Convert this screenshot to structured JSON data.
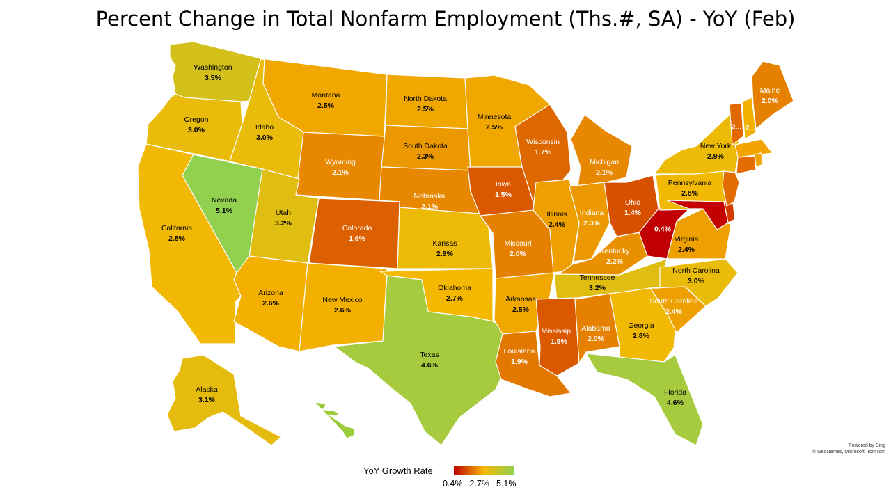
{
  "title": "Percent Change in Total Nonfarm Employment (Ths.#, SA) - YoY (Feb)",
  "legend": {
    "title": "YoY Growth Rate",
    "min_label": "0.4%",
    "mid_label": "2.7%",
    "max_label": "5.1%",
    "min": 0.4,
    "mid": 2.7,
    "max": 5.1,
    "colors": {
      "min": "#c00000",
      "mid": "#f5b800",
      "max": "#92d050"
    }
  },
  "credit": {
    "line1": "Powered by Bing",
    "line2": "© GeoNames, Microsoft, TomTom"
  },
  "states": [
    {
      "id": "WA",
      "name": "Washington",
      "value": 3.5,
      "label": "3.5%"
    },
    {
      "id": "OR",
      "name": "Oregon",
      "value": 3.0,
      "label": "3.0%"
    },
    {
      "id": "CA",
      "name": "California",
      "value": 2.8,
      "label": "2.8%"
    },
    {
      "id": "NV",
      "name": "Nevada",
      "value": 5.1,
      "label": "5.1%"
    },
    {
      "id": "ID",
      "name": "Idaho",
      "value": 3.0,
      "label": "3.0%"
    },
    {
      "id": "MT",
      "name": "Montana",
      "value": 2.5,
      "label": "2.5%"
    },
    {
      "id": "WY",
      "name": "Wyoming",
      "value": 2.1,
      "label": "2.1%"
    },
    {
      "id": "UT",
      "name": "Utah",
      "value": 3.2,
      "label": "3.2%"
    },
    {
      "id": "AZ",
      "name": "Arizona",
      "value": 2.6,
      "label": "2.6%"
    },
    {
      "id": "CO",
      "name": "Colorado",
      "value": 1.6,
      "label": "1.6%"
    },
    {
      "id": "NM",
      "name": "New Mexico",
      "value": 2.6,
      "label": "2.6%"
    },
    {
      "id": "ND",
      "name": "North Dakota",
      "value": 2.5,
      "label": "2.5%"
    },
    {
      "id": "SD",
      "name": "South Dakota",
      "value": 2.3,
      "label": "2.3%"
    },
    {
      "id": "NE",
      "name": "Nebraska",
      "value": 2.1,
      "label": "2.1%"
    },
    {
      "id": "KS",
      "name": "Kansas",
      "value": 2.9,
      "label": "2.9%"
    },
    {
      "id": "OK",
      "name": "Oklahoma",
      "value": 2.7,
      "label": "2.7%"
    },
    {
      "id": "TX",
      "name": "Texas",
      "value": 4.6,
      "label": "4.6%"
    },
    {
      "id": "MN",
      "name": "Minnesota",
      "value": 2.5,
      "label": "2.5%"
    },
    {
      "id": "IA",
      "name": "Iowa",
      "value": 1.5,
      "label": "1.5%"
    },
    {
      "id": "MO",
      "name": "Missouri",
      "value": 2.0,
      "label": "2.0%"
    },
    {
      "id": "AR",
      "name": "Arkansas",
      "value": 2.5,
      "label": "2.5%"
    },
    {
      "id": "LA",
      "name": "Louisiana",
      "value": 1.9,
      "label": "1.9%"
    },
    {
      "id": "WI",
      "name": "Wisconsin",
      "value": 1.7,
      "label": "1.7%"
    },
    {
      "id": "IL",
      "name": "Illinois",
      "value": 2.4,
      "label": "2.4%"
    },
    {
      "id": "MI",
      "name": "Michigan",
      "value": 2.1,
      "label": "2.1%"
    },
    {
      "id": "IN",
      "name": "Indiana",
      "value": 2.3,
      "label": "2.3%"
    },
    {
      "id": "OH",
      "name": "Ohio",
      "value": 1.4,
      "label": "1.4%"
    },
    {
      "id": "KY",
      "name": "Kentucky",
      "value": 2.2,
      "label": "2.2%"
    },
    {
      "id": "TN",
      "name": "Tennessee",
      "value": 3.2,
      "label": "3.2%"
    },
    {
      "id": "MS",
      "name": "Mississip...",
      "value": 1.5,
      "label": "1.5%"
    },
    {
      "id": "AL",
      "name": "Alabama",
      "value": 2.0,
      "label": "2.0%"
    },
    {
      "id": "GA",
      "name": "Georgia",
      "value": 2.8,
      "label": "2.8%"
    },
    {
      "id": "FL",
      "name": "Florida",
      "value": 4.6,
      "label": "4.6%"
    },
    {
      "id": "SC",
      "name": "South Carolina",
      "value": 2.4,
      "label": "2.4%"
    },
    {
      "id": "NC",
      "name": "North Carolina",
      "value": 3.0,
      "label": "3.0%"
    },
    {
      "id": "VA",
      "name": "Virginia",
      "value": 2.4,
      "label": "2.4%"
    },
    {
      "id": "WV",
      "name": "",
      "value": 0.4,
      "label": "0.4%"
    },
    {
      "id": "PA",
      "name": "Pennsylvania",
      "value": 2.8,
      "label": "2.8%"
    },
    {
      "id": "NY",
      "name": "New York",
      "value": 2.9,
      "label": "2.9%"
    },
    {
      "id": "ME",
      "name": "Maine",
      "value": 2.0,
      "label": "2.0%"
    },
    {
      "id": "VT",
      "name": "",
      "value": null,
      "label": "2..."
    },
    {
      "id": "NH",
      "name": "",
      "value": null,
      "label": "2..."
    },
    {
      "id": "AK",
      "name": "Alaska",
      "value": 3.1,
      "label": "3.1%"
    },
    {
      "id": "MD",
      "name": "",
      "value": null,
      "label": ""
    },
    {
      "id": "DE",
      "name": "",
      "value": null,
      "label": ""
    },
    {
      "id": "NJ",
      "name": "",
      "value": null,
      "label": ""
    },
    {
      "id": "CT",
      "name": "",
      "value": null,
      "label": ""
    },
    {
      "id": "MA",
      "name": "",
      "value": null,
      "label": ""
    },
    {
      "id": "RI",
      "name": "",
      "value": null,
      "label": ""
    },
    {
      "id": "HI",
      "name": "",
      "value": null,
      "label": ""
    }
  ]
}
